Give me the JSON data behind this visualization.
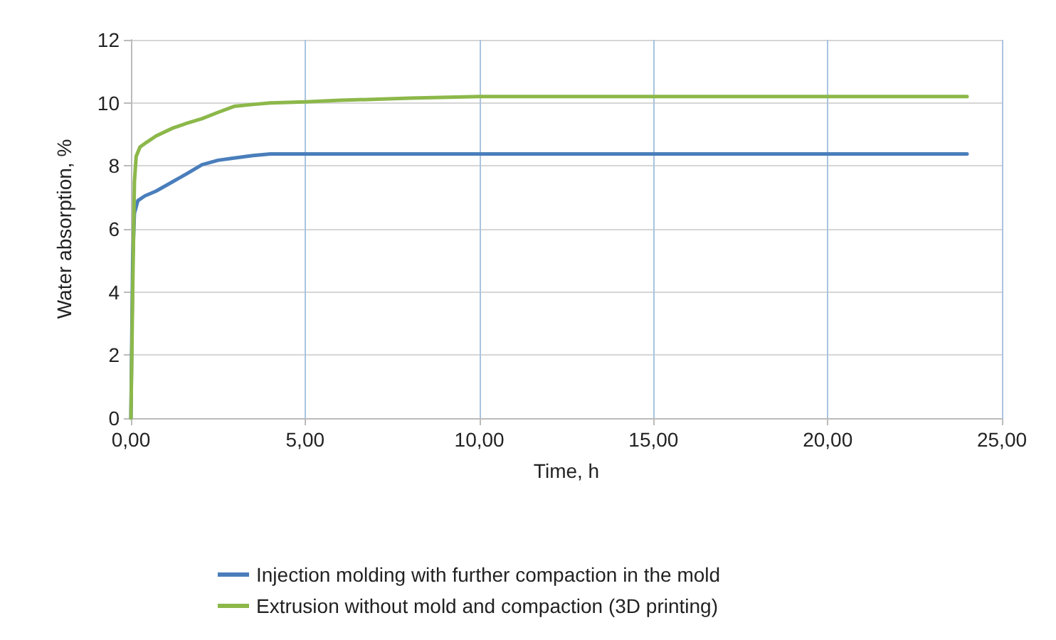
{
  "chart_data": {
    "type": "line",
    "xlabel": "Time, h",
    "ylabel": "Water absorption, %",
    "xlim": [
      0,
      25
    ],
    "xticks": [
      {
        "value": 0,
        "label": "0,00"
      },
      {
        "value": 5,
        "label": "5,00"
      },
      {
        "value": 10,
        "label": "10,00"
      },
      {
        "value": 15,
        "label": "15,00"
      },
      {
        "value": 20,
        "label": "20,00"
      },
      {
        "value": 25,
        "label": "25,00"
      }
    ],
    "ylim": [
      0,
      12
    ],
    "yticks": [
      0,
      2,
      4,
      6,
      8,
      10,
      12
    ],
    "grid": true,
    "legend": "bottom",
    "marker": "none",
    "line_style": "solid",
    "series": [
      {
        "name": "Injection molding with further compaction in the mold",
        "color": "#4a7ebb",
        "x": [
          0,
          0.05,
          0.1,
          0.2,
          0.4,
          0.72,
          1.2,
          1.6,
          2.04,
          2.5,
          2.96,
          3.5,
          4,
          5,
          8,
          12,
          16,
          20,
          24
        ],
        "values": [
          0,
          5,
          6.5,
          6.9,
          7.05,
          7.2,
          7.5,
          7.75,
          8.04,
          8.18,
          8.25,
          8.33,
          8.38,
          8.38,
          8.38,
          8.38,
          8.38,
          8.38,
          8.38
        ]
      },
      {
        "name": "Extrusion without mold and compaction (3D printing)",
        "color": "#8cb84a",
        "x": [
          0,
          0.05,
          0.1,
          0.15,
          0.26,
          0.45,
          0.72,
          1.2,
          1.6,
          2.04,
          2.5,
          2.96,
          3.5,
          4,
          5,
          6,
          8,
          10,
          12,
          16,
          20,
          24
        ],
        "values": [
          0,
          4,
          7.5,
          8.3,
          8.6,
          8.75,
          8.95,
          9.2,
          9.35,
          9.5,
          9.7,
          9.89,
          9.95,
          10,
          10.03,
          10.08,
          10.15,
          10.2,
          10.2,
          10.2,
          10.2,
          10.2
        ]
      }
    ]
  }
}
